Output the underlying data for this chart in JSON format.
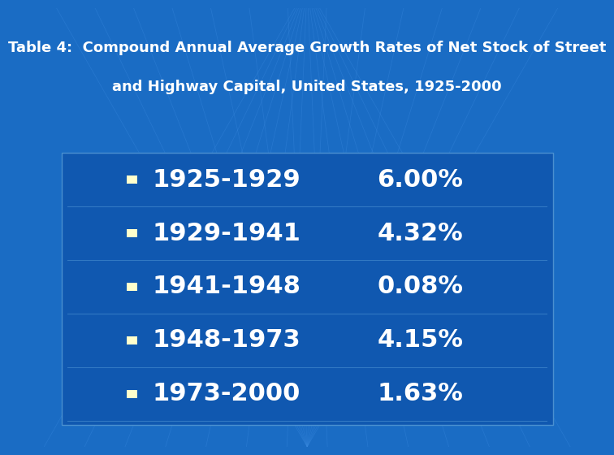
{
  "title_line1": "Table 4:  Compound Annual Average Growth Rates of Net Stock of Street",
  "title_line2": "and Highway Capital, United States, 1925-2000",
  "periods": [
    "1925-1929",
    "1929-1941",
    "1941-1948",
    "1948-1973",
    "1973-2000"
  ],
  "rates": [
    "6.00%",
    "4.32%",
    "0.08%",
    "4.15%",
    "1.63%"
  ],
  "bg_color": "#1a6cc4",
  "title_color": "#ffffff",
  "text_color": "#ffffff",
  "bullet_color": "#ffffcc",
  "title_fontsize": 13,
  "data_fontsize": 22,
  "fig_width": 7.2,
  "fig_height": 5.4
}
